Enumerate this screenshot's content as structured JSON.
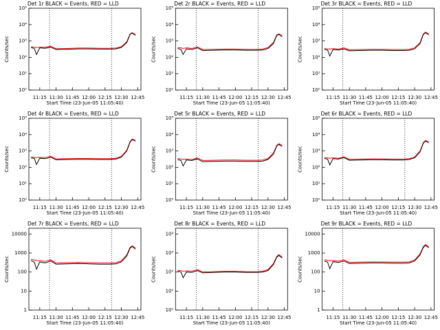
{
  "chart_data": [
    {
      "type": "line",
      "title": "Det 1r BLACK = Events, RED = LLD",
      "ylabel": "Counts/sec",
      "xlabel": "Start Time (23-Jun-05 11:05:40)",
      "log_y": true,
      "x": [
        "11:07",
        "11:10",
        "11:12",
        "11:15",
        "11:20",
        "11:25",
        "11:30",
        "11:40",
        "11:50",
        "12:00",
        "12:10",
        "12:20",
        "12:25",
        "12:30",
        "12:35",
        "12:38",
        "12:40",
        "12:43"
      ],
      "xlim": [
        "11:05",
        "12:48"
      ],
      "xticks": [
        "11:15",
        "11:30",
        "11:45",
        "12:00",
        "12:15",
        "12:30",
        "12:45"
      ],
      "vlines": [
        "11:24",
        "12:21"
      ],
      "ylim": [
        1,
        100000
      ],
      "yticks": [
        {
          "value": 1,
          "label": "10⁰"
        },
        {
          "value": 10,
          "label": "10¹"
        },
        {
          "value": 100,
          "label": "10²"
        },
        {
          "value": 1000,
          "label": "10³"
        },
        {
          "value": 10000,
          "label": "10⁴"
        },
        {
          "value": 100000,
          "label": "10⁵"
        }
      ],
      "series": [
        {
          "name": "Events",
          "color": "#000000",
          "values": [
            400,
            350,
            150,
            380,
            360,
            420,
            300,
            310,
            330,
            330,
            320,
            320,
            330,
            400,
            800,
            2500,
            3000,
            2200
          ]
        },
        {
          "name": "LLD",
          "color": "#ff0000",
          "values": [
            450,
            420,
            400,
            420,
            410,
            480,
            340,
            350,
            370,
            370,
            360,
            360,
            370,
            450,
            900,
            2700,
            3200,
            2500
          ]
        }
      ]
    },
    {
      "type": "line",
      "title": "Det 2r BLACK = Events, RED = LLD",
      "ylabel": "Counts/sec",
      "xlabel": "Start Time (23-Jun-05 11:05:40)",
      "log_y": true,
      "x": [
        "11:07",
        "11:10",
        "11:12",
        "11:15",
        "11:20",
        "11:25",
        "11:30",
        "11:40",
        "11:50",
        "12:00",
        "12:10",
        "12:20",
        "12:25",
        "12:30",
        "12:35",
        "12:38",
        "12:40",
        "12:43"
      ],
      "xlim": [
        "11:05",
        "12:48"
      ],
      "xticks": [
        "11:15",
        "11:30",
        "11:45",
        "12:00",
        "12:15",
        "12:30",
        "12:45"
      ],
      "vlines": [
        "11:24",
        "12:21"
      ],
      "ylim": [
        1,
        100000
      ],
      "yticks": [
        {
          "value": 1,
          "label": "10⁰"
        },
        {
          "value": 10,
          "label": "10¹"
        },
        {
          "value": 100,
          "label": "10²"
        },
        {
          "value": 1000,
          "label": "10³"
        },
        {
          "value": 10000,
          "label": "10⁴"
        },
        {
          "value": 100000,
          "label": "10⁵"
        }
      ],
      "series": [
        {
          "name": "Events",
          "color": "#000000",
          "values": [
            350,
            300,
            150,
            330,
            300,
            380,
            260,
            270,
            280,
            280,
            270,
            270,
            280,
            350,
            700,
            2200,
            2500,
            1800
          ]
        },
        {
          "name": "LLD",
          "color": "#ff0000",
          "values": [
            400,
            380,
            350,
            380,
            350,
            430,
            300,
            310,
            320,
            320,
            310,
            310,
            320,
            400,
            800,
            2400,
            2700,
            2100
          ]
        }
      ]
    },
    {
      "type": "line",
      "title": "Det 3r BLACK = Events, RED = LLD",
      "ylabel": "Counts/sec",
      "xlabel": "Start Time (23-Jun-05 11:05:40)",
      "log_y": true,
      "x": [
        "11:07",
        "11:10",
        "11:12",
        "11:15",
        "11:20",
        "11:25",
        "11:30",
        "11:40",
        "11:50",
        "12:00",
        "12:10",
        "12:20",
        "12:25",
        "12:30",
        "12:35",
        "12:38",
        "12:40",
        "12:43"
      ],
      "xlim": [
        "11:05",
        "12:48"
      ],
      "xticks": [
        "11:15",
        "11:30",
        "11:45",
        "12:00",
        "12:15",
        "12:30",
        "12:45"
      ],
      "vlines": [
        "11:24"
      ],
      "ylim": [
        1,
        100000
      ],
      "yticks": [
        {
          "value": 1,
          "label": "10⁰"
        },
        {
          "value": 10,
          "label": "10¹"
        },
        {
          "value": 100,
          "label": "10²"
        },
        {
          "value": 1000,
          "label": "10³"
        },
        {
          "value": 10000,
          "label": "10⁴"
        },
        {
          "value": 100000,
          "label": "10⁵"
        }
      ],
      "series": [
        {
          "name": "Events",
          "color": "#000000",
          "values": [
            300,
            280,
            120,
            300,
            280,
            330,
            250,
            260,
            270,
            270,
            260,
            260,
            270,
            330,
            700,
            2500,
            3200,
            2400
          ]
        },
        {
          "name": "LLD",
          "color": "#ff0000",
          "values": [
            350,
            330,
            320,
            340,
            320,
            380,
            290,
            300,
            310,
            310,
            300,
            300,
            310,
            380,
            800,
            2700,
            3500,
            2700
          ]
        }
      ]
    },
    {
      "type": "line",
      "title": "Det 4r BLACK = Events, RED = LLD",
      "ylabel": "Counts/sec",
      "xlabel": "Start Time (23-Jun-05 11:05:40)",
      "log_y": true,
      "x": [
        "11:07",
        "11:10",
        "11:12",
        "11:15",
        "11:20",
        "11:25",
        "11:30",
        "11:40",
        "11:50",
        "12:00",
        "12:10",
        "12:20",
        "12:25",
        "12:30",
        "12:35",
        "12:38",
        "12:40",
        "12:43"
      ],
      "xlim": [
        "11:05",
        "12:48"
      ],
      "xticks": [
        "11:15",
        "11:30",
        "11:45",
        "12:00",
        "12:15",
        "12:30",
        "12:45"
      ],
      "vlines": [
        "11:24",
        "12:21"
      ],
      "ylim": [
        1,
        100000
      ],
      "yticks": [
        {
          "value": 1,
          "label": "10⁰"
        },
        {
          "value": 10,
          "label": "10¹"
        },
        {
          "value": 100,
          "label": "10²"
        },
        {
          "value": 1000,
          "label": "10³"
        },
        {
          "value": 10000,
          "label": "10⁴"
        },
        {
          "value": 100000,
          "label": "10⁵"
        }
      ],
      "series": [
        {
          "name": "Events",
          "color": "#000000",
          "values": [
            380,
            350,
            150,
            360,
            340,
            420,
            290,
            300,
            310,
            310,
            300,
            300,
            320,
            420,
            1000,
            3500,
            5000,
            4000
          ]
        },
        {
          "name": "LLD",
          "color": "#ff0000",
          "values": [
            430,
            410,
            390,
            410,
            390,
            470,
            330,
            340,
            350,
            350,
            340,
            340,
            360,
            470,
            1100,
            3800,
            5400,
            4400
          ]
        }
      ]
    },
    {
      "type": "line",
      "title": "Det 5r BLACK = Events, RED = LLD",
      "ylabel": "Counts/sec",
      "xlabel": "Start Time (23-Jun-05 11:05:40)",
      "log_y": true,
      "x": [
        "11:07",
        "11:10",
        "11:12",
        "11:15",
        "11:20",
        "11:25",
        "11:30",
        "11:40",
        "11:50",
        "12:00",
        "12:10",
        "12:20",
        "12:25",
        "12:30",
        "12:35",
        "12:38",
        "12:40",
        "12:43"
      ],
      "xlim": [
        "11:05",
        "12:48"
      ],
      "xticks": [
        "11:15",
        "11:30",
        "11:45",
        "12:00",
        "12:15",
        "12:30",
        "12:45"
      ],
      "vlines": [
        "11:24",
        "12:21"
      ],
      "ylim": [
        1,
        100000
      ],
      "yticks": [
        {
          "value": 1,
          "label": "10⁰"
        },
        {
          "value": 10,
          "label": "10¹"
        },
        {
          "value": 100,
          "label": "10²"
        },
        {
          "value": 1000,
          "label": "10³"
        },
        {
          "value": 10000,
          "label": "10⁴"
        },
        {
          "value": 100000,
          "label": "10⁵"
        }
      ],
      "series": [
        {
          "name": "Events",
          "color": "#000000",
          "values": [
            300,
            260,
            120,
            280,
            260,
            330,
            220,
            230,
            240,
            240,
            230,
            230,
            240,
            300,
            650,
            2000,
            2500,
            1900
          ]
        },
        {
          "name": "LLD",
          "color": "#ff0000",
          "values": [
            350,
            320,
            300,
            320,
            300,
            380,
            260,
            270,
            280,
            280,
            270,
            270,
            280,
            350,
            750,
            2200,
            2800,
            2200
          ]
        }
      ]
    },
    {
      "type": "line",
      "title": "Det 6r BLACK = Events, RED = LLD",
      "ylabel": "Counts/sec",
      "xlabel": "Start Time (23-Jun-05 11:05:40)",
      "log_y": true,
      "x": [
        "11:07",
        "11:10",
        "11:12",
        "11:15",
        "11:20",
        "11:25",
        "11:30",
        "11:40",
        "11:50",
        "12:00",
        "12:10",
        "12:20",
        "12:25",
        "12:30",
        "12:35",
        "12:38",
        "12:40",
        "12:43"
      ],
      "xlim": [
        "11:05",
        "12:48"
      ],
      "xticks": [
        "11:15",
        "11:30",
        "11:45",
        "12:00",
        "12:15",
        "12:30",
        "12:45"
      ],
      "vlines": [
        "11:24",
        "12:21"
      ],
      "ylim": [
        1,
        100000
      ],
      "yticks": [
        {
          "value": 1,
          "label": "10⁰"
        },
        {
          "value": 10,
          "label": "10¹"
        },
        {
          "value": 100,
          "label": "10²"
        },
        {
          "value": 1000,
          "label": "10³"
        },
        {
          "value": 10000,
          "label": "10⁴"
        },
        {
          "value": 100000,
          "label": "10⁵"
        }
      ],
      "series": [
        {
          "name": "Events",
          "color": "#000000",
          "values": [
            350,
            320,
            140,
            340,
            320,
            390,
            270,
            280,
            290,
            290,
            280,
            280,
            300,
            380,
            900,
            3000,
            4000,
            3200
          ]
        },
        {
          "name": "LLD",
          "color": "#ff0000",
          "values": [
            400,
            380,
            360,
            380,
            360,
            440,
            310,
            320,
            330,
            330,
            320,
            320,
            340,
            430,
            1000,
            3300,
            4400,
            3600
          ]
        }
      ]
    },
    {
      "type": "line",
      "title": "Det 7r BLACK = Events, RED = LLD",
      "ylabel": "Counts/sec",
      "xlabel": "Start Time (23-Jun-05 11:05:40)",
      "log_y": true,
      "x": [
        "11:07",
        "11:10",
        "11:12",
        "11:15",
        "11:20",
        "11:25",
        "11:30",
        "11:40",
        "11:50",
        "12:00",
        "12:10",
        "12:20",
        "12:25",
        "12:30",
        "12:35",
        "12:38",
        "12:40",
        "12:43"
      ],
      "xlim": [
        "11:05",
        "12:48"
      ],
      "xticks": [
        "11:15",
        "11:30",
        "11:45",
        "12:00",
        "12:15",
        "12:30",
        "12:45"
      ],
      "vlines": [
        "11:24",
        "12:21"
      ],
      "ylim": [
        1,
        20000
      ],
      "yticks": [
        1,
        10,
        100,
        1000,
        10000
      ],
      "series": [
        {
          "name": "Events",
          "color": "#000000",
          "values": [
            400,
            330,
            140,
            340,
            300,
            380,
            260,
            270,
            280,
            270,
            260,
            260,
            270,
            340,
            700,
            1800,
            2200,
            1600
          ]
        },
        {
          "name": "LLD",
          "color": "#ff0000",
          "values": [
            470,
            420,
            400,
            400,
            360,
            440,
            300,
            310,
            320,
            310,
            300,
            300,
            310,
            390,
            800,
            2000,
            2400,
            1800
          ]
        }
      ]
    },
    {
      "type": "line",
      "title": "Det 8r BLACK = Events, RED = LLD",
      "ylabel": "Counts/sec",
      "xlabel": "Start Time (23-Jun-05 11:05:40)",
      "log_y": true,
      "x": [
        "11:07",
        "11:10",
        "11:12",
        "11:15",
        "11:20",
        "11:25",
        "11:30",
        "11:40",
        "11:50",
        "12:00",
        "12:10",
        "12:20",
        "12:25",
        "12:30",
        "12:35",
        "12:38",
        "12:40",
        "12:43"
      ],
      "xlim": [
        "11:05",
        "12:48"
      ],
      "xticks": [
        "11:15",
        "11:30",
        "11:45",
        "12:00",
        "12:15",
        "12:30",
        "12:45"
      ],
      "vlines": [
        "11:24",
        "12:21"
      ],
      "ylim": [
        1,
        20000
      ],
      "yticks": [
        {
          "value": 1,
          "label": "10⁰"
        },
        {
          "value": 10,
          "label": "10¹"
        },
        {
          "value": 100,
          "label": "10²"
        },
        {
          "value": 1000,
          "label": "10³"
        },
        {
          "value": 10000,
          "label": "10⁴"
        }
      ],
      "series": [
        {
          "name": "Events",
          "color": "#000000",
          "values": [
            110,
            100,
            50,
            100,
            95,
            120,
            90,
            95,
            100,
            100,
            95,
            95,
            100,
            120,
            250,
            600,
            750,
            550
          ]
        },
        {
          "name": "LLD",
          "color": "#ff0000",
          "values": [
            125,
            118,
            110,
            115,
            110,
            135,
            100,
            105,
            110,
            110,
            105,
            105,
            110,
            135,
            280,
            660,
            820,
            610
          ]
        }
      ]
    },
    {
      "type": "line",
      "title": "Det 9r BLACK = Events, RED = LLD",
      "ylabel": "Counts/sec",
      "xlabel": "Start Time (23-Jun-05 11:05:40)",
      "log_y": true,
      "x": [
        "11:07",
        "11:10",
        "11:12",
        "11:15",
        "11:20",
        "11:25",
        "11:30",
        "11:40",
        "11:50",
        "12:00",
        "12:10",
        "12:20",
        "12:25",
        "12:30",
        "12:35",
        "12:38",
        "12:40",
        "12:43"
      ],
      "xlim": [
        "11:05",
        "12:48"
      ],
      "xticks": [
        "11:15",
        "11:30",
        "11:45",
        "12:00",
        "12:15",
        "12:30",
        "12:45"
      ],
      "vlines": [
        "11:24"
      ],
      "ylim": [
        1,
        20000
      ],
      "yticks": [
        1,
        10,
        100,
        1000,
        10000
      ],
      "series": [
        {
          "name": "Events",
          "color": "#000000",
          "values": [
            380,
            330,
            150,
            350,
            320,
            380,
            280,
            290,
            300,
            300,
            290,
            290,
            300,
            380,
            800,
            2000,
            2500,
            1900
          ]
        },
        {
          "name": "LLD",
          "color": "#ff0000",
          "values": [
            450,
            410,
            390,
            400,
            370,
            440,
            320,
            330,
            340,
            340,
            330,
            330,
            340,
            430,
            900,
            2200,
            2800,
            2100
          ]
        }
      ]
    }
  ]
}
